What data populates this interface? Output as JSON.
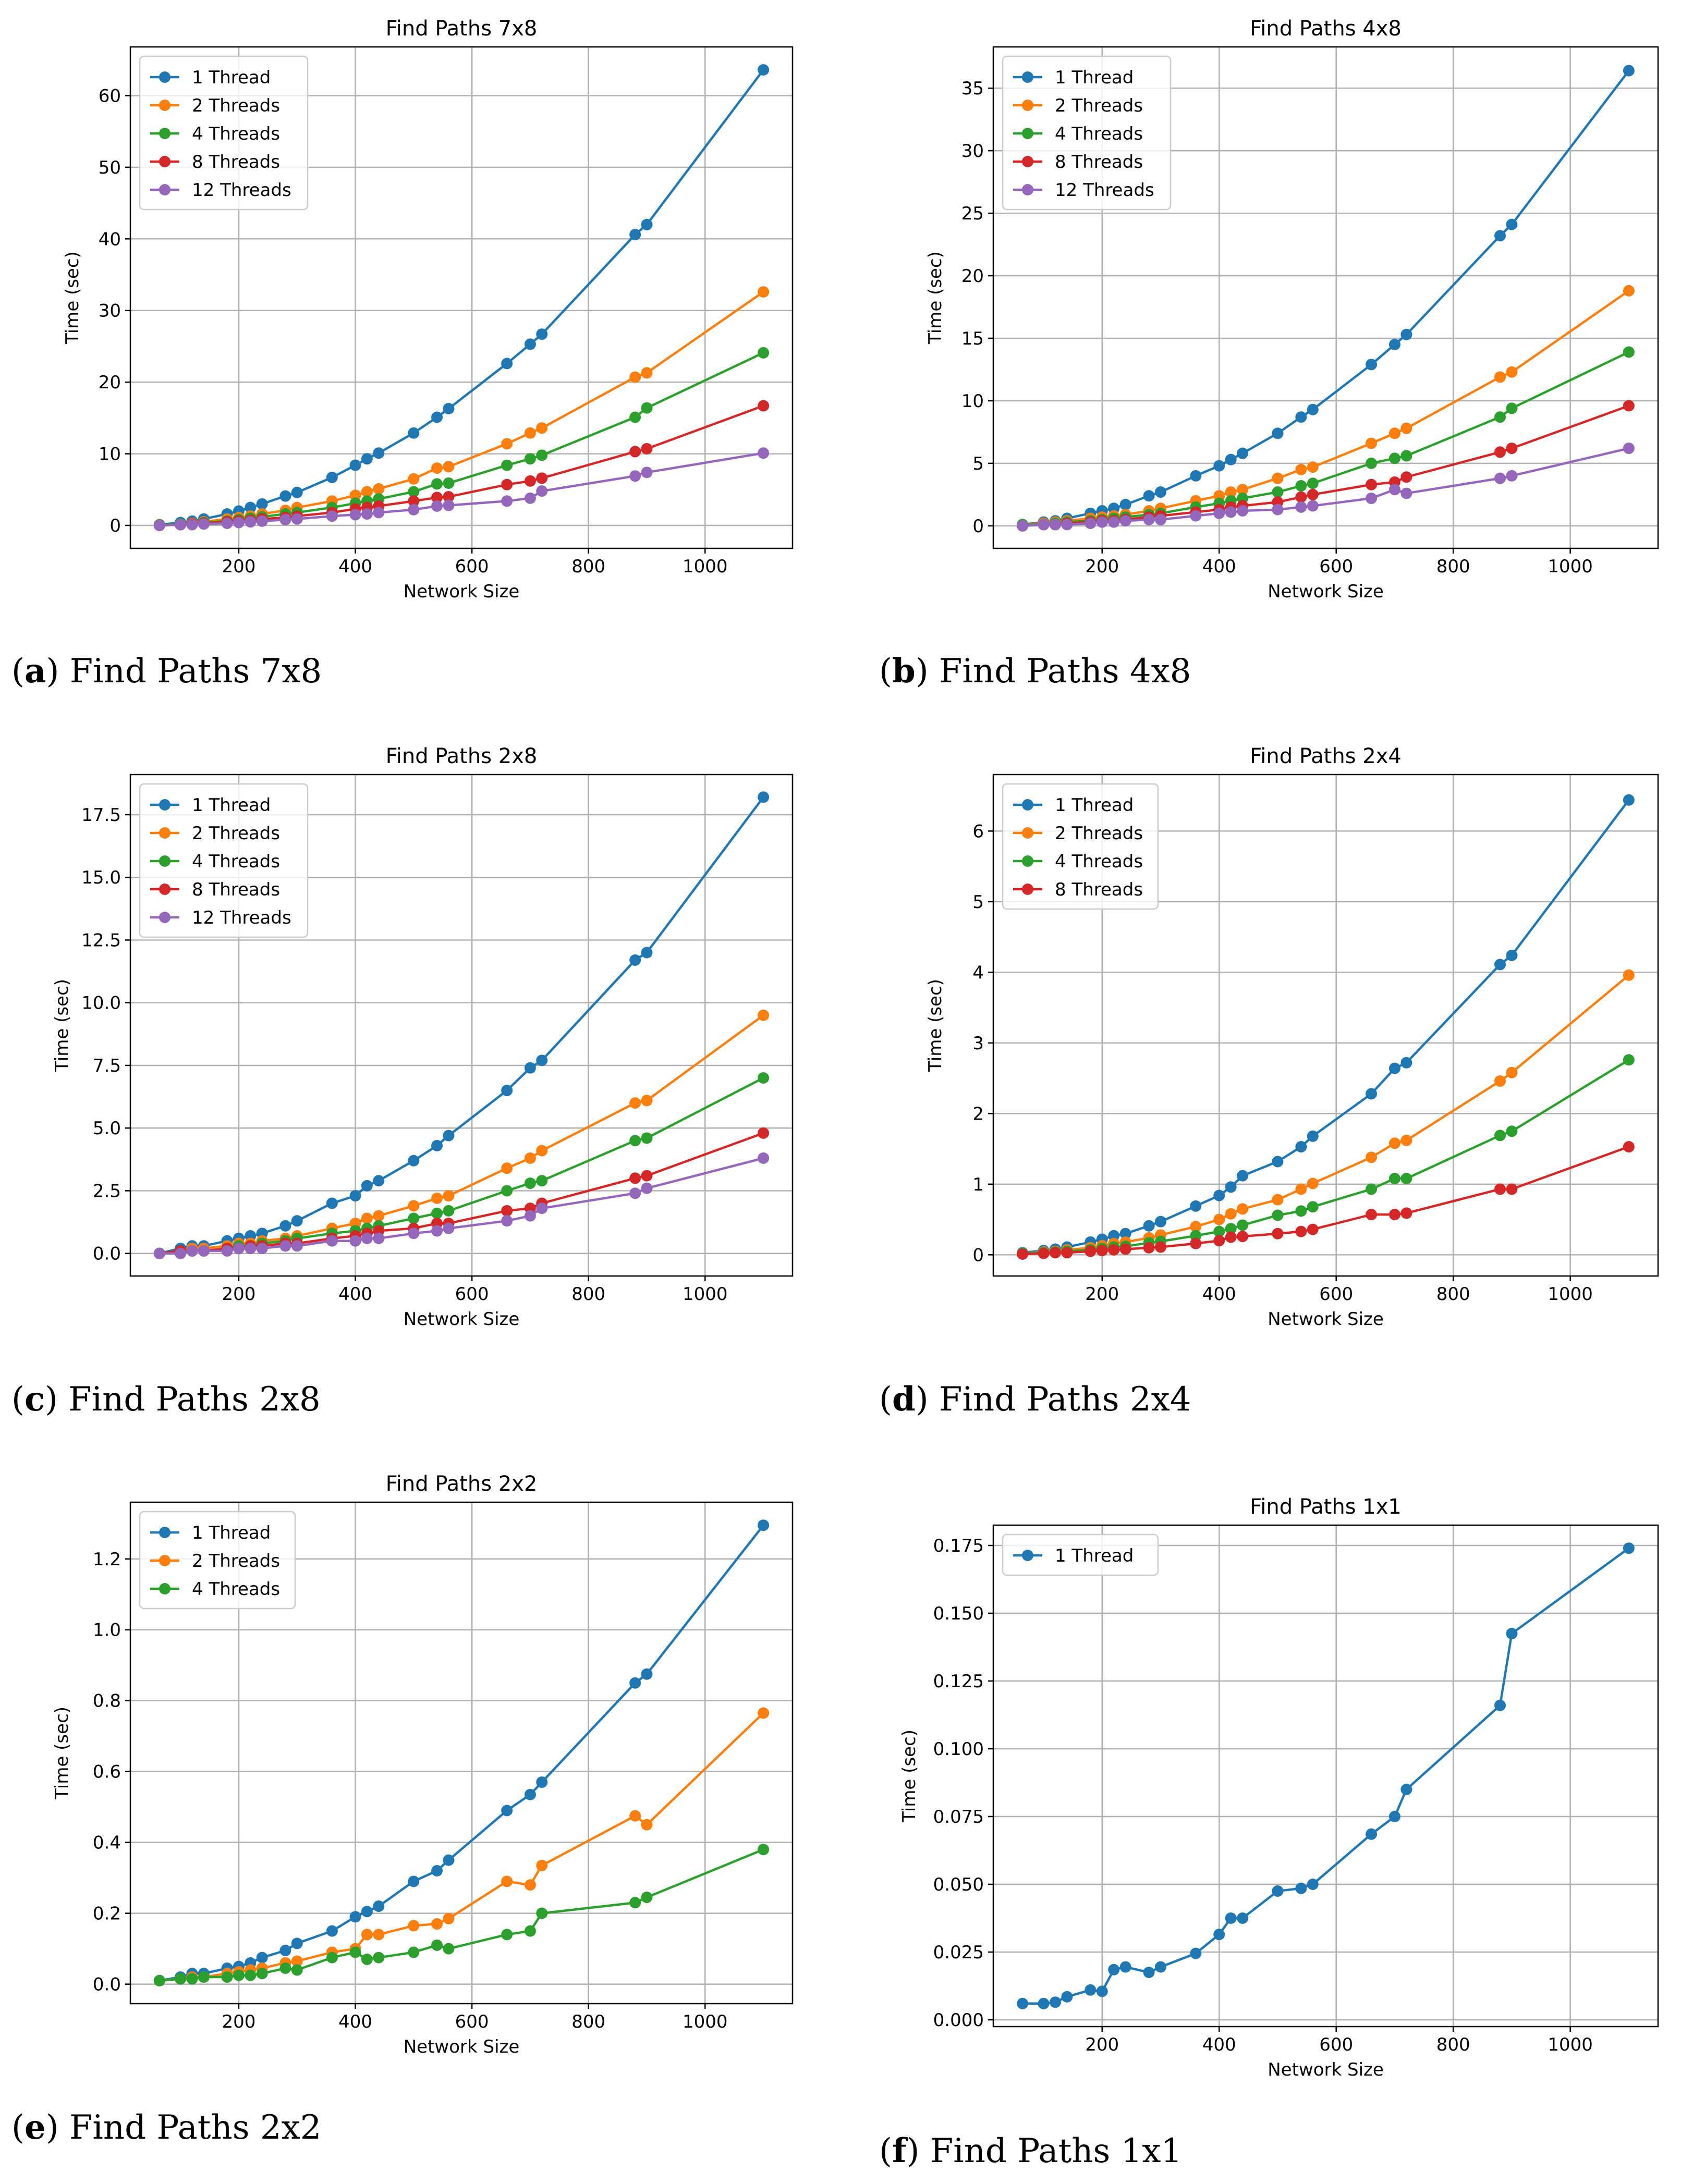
{
  "colors": {
    "1 Thread": "#1f77b4",
    "2 Threads": "#ff7f0e",
    "4 Threads": "#2ca02c",
    "8 Threads": "#d62728",
    "12 Threads": "#9467bd"
  },
  "x": [
    64,
    100,
    120,
    140,
    180,
    200,
    220,
    240,
    280,
    300,
    360,
    400,
    420,
    440,
    500,
    540,
    560,
    660,
    700,
    720,
    880,
    900,
    1100
  ],
  "chart_data": [
    {
      "type": "line",
      "title": "Find Paths 7x8",
      "caption_letter": "a",
      "caption_text": "Find Paths 7x8",
      "xlabel": "Network Size",
      "ylabel": "Time (sec)",
      "xlim": [
        14,
        1150
      ],
      "ylim": [
        -3.2,
        66.8
      ],
      "xticks": [
        200,
        400,
        600,
        800,
        1000
      ],
      "yticks": [
        0,
        10,
        20,
        30,
        40,
        50,
        60
      ],
      "ytick_labels": [
        "0",
        "10",
        "20",
        "30",
        "40",
        "50",
        "60"
      ],
      "legend": "upper left",
      "series": [
        {
          "name": "1 Thread",
          "values": [
            0.1,
            0.4,
            0.6,
            0.9,
            1.6,
            2.0,
            2.5,
            3.0,
            4.1,
            4.6,
            6.7,
            8.4,
            9.3,
            10.1,
            12.9,
            15.1,
            16.3,
            22.6,
            25.3,
            26.7,
            40.6,
            42.0,
            63.6
          ]
        },
        {
          "name": "2 Threads",
          "values": [
            0.1,
            0.2,
            0.3,
            0.5,
            0.9,
            1.1,
            1.3,
            1.6,
            2.1,
            2.5,
            3.4,
            4.2,
            4.7,
            5.1,
            6.5,
            8.0,
            8.2,
            11.4,
            12.9,
            13.6,
            20.7,
            21.3,
            32.6
          ]
        },
        {
          "name": "4 Threads",
          "values": [
            0.1,
            0.2,
            0.2,
            0.4,
            0.6,
            0.8,
            1.0,
            1.2,
            1.6,
            1.8,
            2.5,
            3.1,
            3.4,
            3.7,
            4.7,
            5.8,
            5.9,
            8.4,
            9.3,
            9.8,
            15.1,
            16.4,
            24.1
          ]
        },
        {
          "name": "8 Threads",
          "values": [
            0.0,
            0.1,
            0.2,
            0.3,
            0.5,
            0.6,
            0.7,
            0.9,
            1.1,
            1.3,
            1.8,
            2.3,
            2.5,
            2.7,
            3.4,
            3.9,
            4.0,
            5.7,
            6.2,
            6.6,
            10.3,
            10.7,
            16.7
          ]
        },
        {
          "name": "12 Threads",
          "values": [
            0.0,
            0.1,
            0.1,
            0.2,
            0.3,
            0.4,
            0.5,
            0.6,
            0.8,
            0.9,
            1.3,
            1.5,
            1.6,
            1.8,
            2.2,
            2.7,
            2.8,
            3.4,
            3.8,
            4.8,
            6.9,
            7.4,
            10.1
          ]
        }
      ]
    },
    {
      "type": "line",
      "title": "Find Paths 4x8",
      "caption_letter": "b",
      "caption_text": "Find Paths 4x8",
      "xlabel": "Network Size",
      "ylabel": "Time (sec)",
      "xlim": [
        14,
        1150
      ],
      "ylim": [
        -1.8,
        38.3
      ],
      "xticks": [
        200,
        400,
        600,
        800,
        1000
      ],
      "yticks": [
        0,
        5,
        10,
        15,
        20,
        25,
        30,
        35
      ],
      "ytick_labels": [
        "0",
        "5",
        "10",
        "15",
        "20",
        "25",
        "30",
        "35"
      ],
      "legend": "upper left",
      "series": [
        {
          "name": "1 Thread",
          "values": [
            0.1,
            0.3,
            0.4,
            0.6,
            1.0,
            1.2,
            1.4,
            1.7,
            2.4,
            2.7,
            4.0,
            4.8,
            5.3,
            5.8,
            7.4,
            8.7,
            9.3,
            12.9,
            14.5,
            15.3,
            23.2,
            24.1,
            36.4
          ]
        },
        {
          "name": "2 Threads",
          "values": [
            0.1,
            0.2,
            0.3,
            0.4,
            0.6,
            0.7,
            0.8,
            0.9,
            1.2,
            1.4,
            2.0,
            2.4,
            2.7,
            2.9,
            3.8,
            4.5,
            4.7,
            6.6,
            7.4,
            7.8,
            11.9,
            12.3,
            18.8
          ]
        },
        {
          "name": "4 Threads",
          "values": [
            0.1,
            0.1,
            0.2,
            0.3,
            0.4,
            0.5,
            0.6,
            0.7,
            0.9,
            1.0,
            1.5,
            1.8,
            2.0,
            2.2,
            2.7,
            3.2,
            3.4,
            5.0,
            5.4,
            5.6,
            8.7,
            9.4,
            13.9
          ]
        },
        {
          "name": "8 Threads",
          "values": [
            0.0,
            0.1,
            0.1,
            0.2,
            0.3,
            0.4,
            0.4,
            0.5,
            0.7,
            0.8,
            1.1,
            1.3,
            1.5,
            1.6,
            1.9,
            2.3,
            2.5,
            3.3,
            3.5,
            3.9,
            5.9,
            6.2,
            9.6
          ]
        },
        {
          "name": "12 Threads",
          "values": [
            0.0,
            0.1,
            0.1,
            0.1,
            0.2,
            0.3,
            0.3,
            0.4,
            0.5,
            0.5,
            0.8,
            1.0,
            1.1,
            1.2,
            1.3,
            1.5,
            1.6,
            2.2,
            2.9,
            2.6,
            3.8,
            4.0,
            6.2
          ]
        }
      ]
    },
    {
      "type": "line",
      "title": "Find Paths 2x8",
      "caption_letter": "c",
      "caption_text": "Find Paths 2x8",
      "xlabel": "Network Size",
      "ylabel": "Time (sec)",
      "xlim": [
        14,
        1150
      ],
      "ylim": [
        -0.9,
        19.1
      ],
      "xticks": [
        200,
        400,
        600,
        800,
        1000
      ],
      "yticks": [
        0,
        2.5,
        5,
        7.5,
        10,
        12.5,
        15,
        17.5
      ],
      "ytick_labels": [
        "0.0",
        "2.5",
        "5.0",
        "7.5",
        "10.0",
        "12.5",
        "15.0",
        "17.5"
      ],
      "legend": "upper left",
      "series": [
        {
          "name": "1 Thread",
          "values": [
            0.0,
            0.2,
            0.3,
            0.3,
            0.5,
            0.6,
            0.7,
            0.8,
            1.1,
            1.3,
            2.0,
            2.3,
            2.7,
            2.9,
            3.7,
            4.3,
            4.7,
            6.5,
            7.4,
            7.7,
            11.7,
            12.0,
            18.2
          ]
        },
        {
          "name": "2 Threads",
          "values": [
            0.0,
            0.1,
            0.2,
            0.2,
            0.3,
            0.4,
            0.4,
            0.5,
            0.6,
            0.7,
            1.0,
            1.2,
            1.4,
            1.5,
            1.9,
            2.2,
            2.3,
            3.4,
            3.8,
            4.1,
            6.0,
            6.1,
            9.5
          ]
        },
        {
          "name": "4 Threads",
          "values": [
            0.0,
            0.1,
            0.1,
            0.1,
            0.2,
            0.3,
            0.3,
            0.4,
            0.5,
            0.6,
            0.8,
            0.9,
            1.0,
            1.1,
            1.4,
            1.6,
            1.7,
            2.5,
            2.8,
            2.9,
            4.5,
            4.6,
            7.0
          ]
        },
        {
          "name": "8 Threads",
          "values": [
            0.0,
            0.1,
            0.1,
            0.1,
            0.2,
            0.2,
            0.3,
            0.3,
            0.4,
            0.4,
            0.6,
            0.7,
            0.8,
            0.9,
            1.0,
            1.2,
            1.2,
            1.7,
            1.8,
            2.0,
            3.0,
            3.1,
            4.8
          ]
        },
        {
          "name": "12 Threads",
          "values": [
            0.0,
            0.0,
            0.1,
            0.1,
            0.1,
            0.2,
            0.2,
            0.2,
            0.3,
            0.3,
            0.5,
            0.5,
            0.6,
            0.6,
            0.8,
            0.9,
            1.0,
            1.3,
            1.5,
            1.8,
            2.4,
            2.6,
            3.8
          ]
        }
      ]
    },
    {
      "type": "line",
      "title": "Find Paths 2x4",
      "caption_letter": "d",
      "caption_text": "Find Paths 2x4",
      "xlabel": "Network Size",
      "ylabel": "Time (sec)",
      "xlim": [
        14,
        1150
      ],
      "ylim": [
        -0.3,
        6.8
      ],
      "xticks": [
        200,
        400,
        600,
        800,
        1000
      ],
      "yticks": [
        0,
        1,
        2,
        3,
        4,
        5,
        6
      ],
      "ytick_labels": [
        "0",
        "1",
        "2",
        "3",
        "4",
        "5",
        "6"
      ],
      "legend": "upper left",
      "series": [
        {
          "name": "1 Thread",
          "values": [
            0.03,
            0.06,
            0.08,
            0.11,
            0.18,
            0.22,
            0.27,
            0.3,
            0.41,
            0.47,
            0.69,
            0.84,
            0.96,
            1.12,
            1.32,
            1.53,
            1.68,
            2.28,
            2.64,
            2.72,
            4.11,
            4.24,
            6.44
          ]
        },
        {
          "name": "2 Threads",
          "values": [
            0.02,
            0.04,
            0.05,
            0.07,
            0.1,
            0.13,
            0.16,
            0.18,
            0.24,
            0.28,
            0.4,
            0.5,
            0.58,
            0.65,
            0.78,
            0.93,
            1.01,
            1.38,
            1.58,
            1.62,
            2.46,
            2.58,
            3.96
          ]
        },
        {
          "name": "4 Threads",
          "values": [
            0.02,
            0.03,
            0.04,
            0.05,
            0.07,
            0.09,
            0.11,
            0.12,
            0.17,
            0.19,
            0.27,
            0.33,
            0.37,
            0.42,
            0.56,
            0.62,
            0.68,
            0.93,
            1.08,
            1.08,
            1.69,
            1.75,
            2.76
          ]
        },
        {
          "name": "8 Threads",
          "values": [
            0.01,
            0.02,
            0.03,
            0.03,
            0.05,
            0.06,
            0.07,
            0.08,
            0.1,
            0.11,
            0.16,
            0.2,
            0.25,
            0.26,
            0.3,
            0.33,
            0.36,
            0.57,
            0.57,
            0.59,
            0.93,
            0.93,
            1.53
          ]
        }
      ]
    },
    {
      "type": "line",
      "title": "Find Paths 2x2",
      "caption_letter": "e",
      "caption_text": "Find Paths 2x2",
      "xlabel": "Network Size",
      "ylabel": "Time (sec)",
      "xlim": [
        14,
        1150
      ],
      "ylim": [
        -0.055,
        1.36
      ],
      "xticks": [
        200,
        400,
        600,
        800,
        1000
      ],
      "yticks": [
        0,
        0.2,
        0.4,
        0.6,
        0.8,
        1.0,
        1.2
      ],
      "ytick_labels": [
        "0.0",
        "0.2",
        "0.4",
        "0.6",
        "0.8",
        "1.0",
        "1.2"
      ],
      "legend": "upper left",
      "series": [
        {
          "name": "1 Thread",
          "values": [
            0.01,
            0.02,
            0.03,
            0.03,
            0.045,
            0.05,
            0.06,
            0.075,
            0.095,
            0.115,
            0.15,
            0.19,
            0.205,
            0.22,
            0.29,
            0.32,
            0.35,
            0.49,
            0.535,
            0.57,
            0.85,
            0.875,
            1.295
          ]
        },
        {
          "name": "2 Threads",
          "values": [
            0.01,
            0.015,
            0.02,
            0.02,
            0.03,
            0.035,
            0.04,
            0.045,
            0.06,
            0.065,
            0.09,
            0.1,
            0.14,
            0.14,
            0.165,
            0.17,
            0.185,
            0.29,
            0.28,
            0.335,
            0.475,
            0.45,
            0.765
          ]
        },
        {
          "name": "4 Threads",
          "values": [
            0.01,
            0.015,
            0.015,
            0.02,
            0.02,
            0.025,
            0.025,
            0.03,
            0.045,
            0.04,
            0.075,
            0.09,
            0.07,
            0.075,
            0.09,
            0.11,
            0.1,
            0.14,
            0.15,
            0.2,
            0.23,
            0.245,
            0.38
          ]
        }
      ]
    },
    {
      "type": "line",
      "title": "Find Paths 1x1",
      "caption_letter": "f",
      "caption_text": "Find Paths 1x1",
      "xlabel": "Network Size",
      "ylabel": "Time (sec)",
      "xlim": [
        14,
        1150
      ],
      "ylim": [
        -0.0025,
        0.1825
      ],
      "xticks": [
        200,
        400,
        600,
        800,
        1000
      ],
      "yticks": [
        0,
        0.025,
        0.05,
        0.075,
        0.1,
        0.125,
        0.15,
        0.175
      ],
      "ytick_labels": [
        "0.000",
        "0.025",
        "0.050",
        "0.075",
        "0.100",
        "0.125",
        "0.150",
        "0.175"
      ],
      "legend": "upper left",
      "series": [
        {
          "name": "1 Thread",
          "values": [
            0.006,
            0.006,
            0.0065,
            0.0085,
            0.011,
            0.0105,
            0.0185,
            0.0195,
            0.0175,
            0.0195,
            0.0245,
            0.0315,
            0.0375,
            0.0375,
            0.0475,
            0.0485,
            0.05,
            0.0685,
            0.075,
            0.085,
            0.116,
            0.1425,
            0.174
          ]
        }
      ]
    }
  ]
}
